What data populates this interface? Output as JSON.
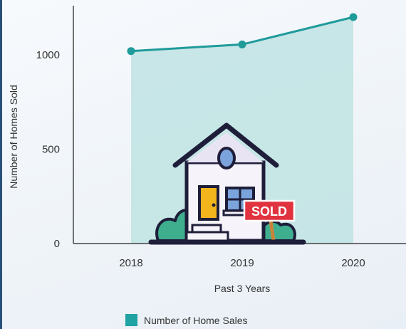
{
  "chart_data": {
    "type": "area",
    "title": "",
    "xlabel": "Past 3 Years",
    "ylabel": "Number of Homes Sold",
    "x": [
      "2018",
      "2019",
      "2020"
    ],
    "series": [
      {
        "name": "Number of Home Sales",
        "values": [
          1020,
          1055,
          1200
        ]
      }
    ],
    "yticks": [
      0,
      500,
      1000
    ],
    "ylim": [
      0,
      1250
    ],
    "grid": false,
    "legend_position": "bottom-center",
    "colors": {
      "line": "#1f9b9a",
      "fill": "#bfe3e3",
      "legend_swatch": "#1fa3a3",
      "axis": "#444444"
    }
  },
  "illustration": {
    "sign_text": "SOLD",
    "sign_color": "#e0333f",
    "icon": "house-sold-icon"
  }
}
